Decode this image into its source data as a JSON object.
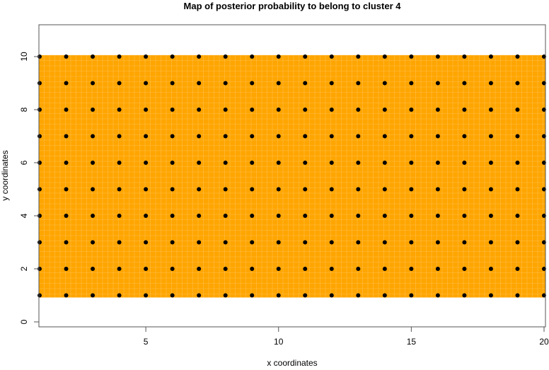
{
  "chart_data": {
    "type": "heatmap",
    "title": "Map of posterior probability to belong to cluster  4",
    "xlabel": "x coordinates",
    "ylabel": "y coordinates",
    "xlim": [
      1,
      20
    ],
    "ylim": [
      -0.19,
      11.2
    ],
    "x_ticks": [
      5,
      10,
      15,
      20
    ],
    "y_ticks": [
      0,
      2,
      4,
      6,
      8,
      10
    ],
    "grid": false,
    "fill_region": {
      "x": [
        1,
        20
      ],
      "y": [
        1,
        10
      ],
      "color": "#FFA500"
    },
    "points": {
      "x": [
        1,
        2,
        3,
        4,
        5,
        6,
        7,
        8,
        9,
        10,
        11,
        12,
        13,
        14,
        15,
        16,
        17,
        18,
        19,
        20
      ],
      "y": [
        1,
        2,
        3,
        4,
        5,
        6,
        7,
        8,
        9,
        10
      ],
      "color": "#000000"
    }
  }
}
